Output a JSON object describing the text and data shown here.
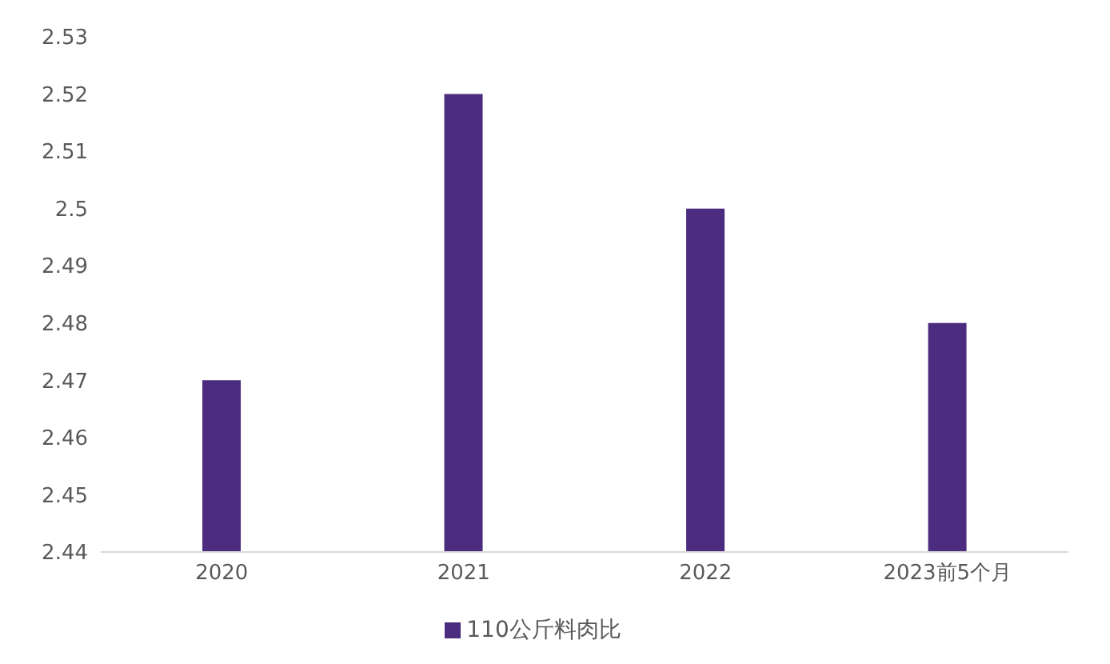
{
  "chart_data": {
    "type": "bar",
    "categories": [
      "2020",
      "2021",
      "2022",
      "2023前5个月"
    ],
    "series": [
      {
        "name": "110公斤料肉比",
        "color": "#4b2c7e",
        "values": [
          2.47,
          2.52,
          2.5,
          2.48
        ]
      }
    ],
    "ylim": [
      2.44,
      2.53
    ],
    "yticks": [
      2.44,
      2.45,
      2.46,
      2.47,
      2.48,
      2.49,
      2.5,
      2.51,
      2.52,
      2.53
    ],
    "grid": false,
    "legend": "bottom"
  }
}
